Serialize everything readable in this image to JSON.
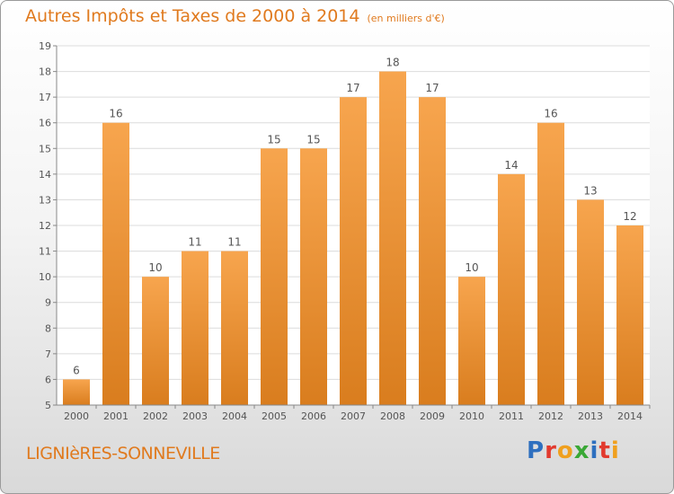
{
  "header": {
    "title": "Autres Impôts et Taxes de 2000 à 2014",
    "unit": "(en milliers d'€)"
  },
  "footer": {
    "commune": "LIGNIèRES-SONNEVILLE",
    "brand_letters": [
      {
        "char": "P",
        "color": "#2e6fbf"
      },
      {
        "char": "r",
        "color": "#e23a2e"
      },
      {
        "char": "o",
        "color": "#f0a01e"
      },
      {
        "char": "x",
        "color": "#3aa836"
      },
      {
        "char": "i",
        "color": "#2e6fbf"
      },
      {
        "char": "t",
        "color": "#e23a2e"
      },
      {
        "char": "i",
        "color": "#f0a01e"
      }
    ]
  },
  "chart_data": {
    "type": "bar",
    "title": "Autres Impôts et Taxes de 2000 à 2014",
    "subtitle": "(en milliers d'€)",
    "categories": [
      "2000",
      "2001",
      "2002",
      "2003",
      "2004",
      "2005",
      "2006",
      "2007",
      "2008",
      "2009",
      "2010",
      "2011",
      "2012",
      "2013",
      "2014"
    ],
    "values": [
      6,
      16,
      10,
      11,
      11,
      15,
      15,
      17,
      18,
      17,
      10,
      14,
      16,
      13,
      12
    ],
    "ylim": [
      5,
      19
    ],
    "yticks": [
      5,
      6,
      7,
      8,
      9,
      10,
      11,
      12,
      13,
      14,
      15,
      16,
      17,
      18,
      19
    ],
    "grid": true,
    "data_labels": true,
    "bar_color_top": "#f7a54e",
    "bar_color_bottom": "#d97d1e",
    "text_color": "#555555",
    "accent_color": "#e07a1e"
  }
}
